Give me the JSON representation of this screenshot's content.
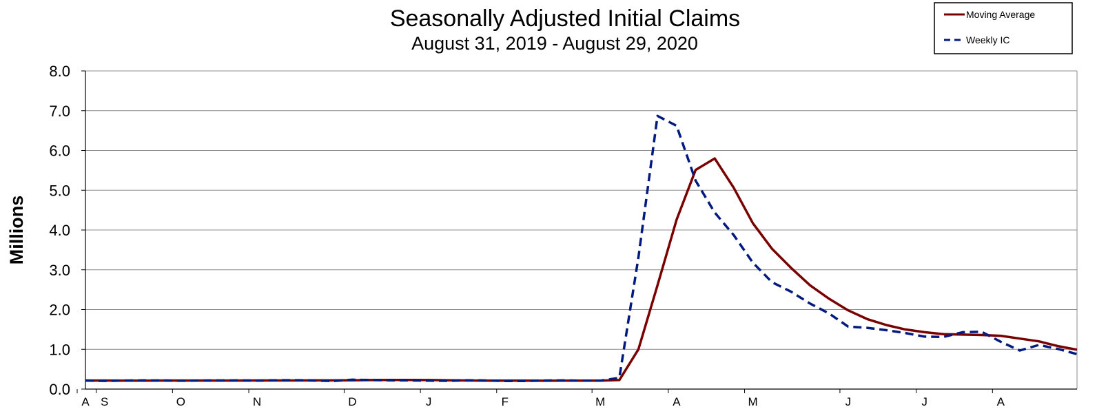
{
  "chart_data": {
    "type": "line",
    "title": "Seasonally Adjusted Initial Claims",
    "subtitle": "August 31, 2019 - August 29, 2020",
    "xlabel": "",
    "ylabel": "Millions",
    "ylim": [
      0,
      8
    ],
    "yticks": [
      "0.0",
      "1.0",
      "2.0",
      "3.0",
      "4.0",
      "5.0",
      "6.0",
      "7.0",
      "8.0"
    ],
    "xticks": [
      {
        "label": "A",
        "date": "2019-08-31"
      },
      {
        "label": "S",
        "date": "2019-09-07"
      },
      {
        "label": "O",
        "date": "2019-10-05"
      },
      {
        "label": "N",
        "date": "2019-11-02"
      },
      {
        "label": "D",
        "date": "2019-12-07"
      },
      {
        "label": "J",
        "date": "2020-01-04"
      },
      {
        "label": "F",
        "date": "2020-02-01"
      },
      {
        "label": "M",
        "date": "2020-03-07"
      },
      {
        "label": "A",
        "date": "2020-04-04"
      },
      {
        "label": "M",
        "date": "2020-05-02"
      },
      {
        "label": "J",
        "date": "2020-06-06"
      },
      {
        "label": "J",
        "date": "2020-07-04"
      },
      {
        "label": "A",
        "date": "2020-08-01"
      }
    ],
    "grid": true,
    "legend_position": "top-right",
    "x": [
      "2019-08-31",
      "2019-09-07",
      "2019-09-14",
      "2019-09-21",
      "2019-09-28",
      "2019-10-05",
      "2019-10-12",
      "2019-10-19",
      "2019-10-26",
      "2019-11-02",
      "2019-11-09",
      "2019-11-16",
      "2019-11-23",
      "2019-11-30",
      "2019-12-07",
      "2019-12-14",
      "2019-12-21",
      "2019-12-28",
      "2020-01-04",
      "2020-01-11",
      "2020-01-18",
      "2020-01-25",
      "2020-02-01",
      "2020-02-08",
      "2020-02-15",
      "2020-02-22",
      "2020-02-29",
      "2020-03-07",
      "2020-03-14",
      "2020-03-21",
      "2020-03-28",
      "2020-04-04",
      "2020-04-11",
      "2020-04-18",
      "2020-04-25",
      "2020-05-02",
      "2020-05-09",
      "2020-05-16",
      "2020-05-23",
      "2020-05-30",
      "2020-06-06",
      "2020-06-13",
      "2020-06-20",
      "2020-06-27",
      "2020-07-04",
      "2020-07-11",
      "2020-07-18",
      "2020-07-25",
      "2020-08-01",
      "2020-08-08",
      "2020-08-15",
      "2020-08-22",
      "2020-08-29"
    ],
    "series": [
      {
        "name": "Moving Average",
        "color": "#7a0000",
        "style": "solid",
        "values": [
          0.215,
          0.214,
          0.213,
          0.213,
          0.214,
          0.215,
          0.215,
          0.214,
          0.215,
          0.216,
          0.216,
          0.217,
          0.219,
          0.219,
          0.222,
          0.226,
          0.228,
          0.229,
          0.226,
          0.221,
          0.216,
          0.213,
          0.212,
          0.211,
          0.21,
          0.211,
          0.212,
          0.213,
          0.226,
          1.0,
          2.61,
          4.26,
          5.51,
          5.8,
          5.06,
          4.17,
          3.53,
          3.05,
          2.61,
          2.27,
          1.98,
          1.76,
          1.61,
          1.5,
          1.43,
          1.38,
          1.37,
          1.36,
          1.34,
          1.27,
          1.2,
          1.08,
          0.99
        ]
      },
      {
        "name": "Weekly IC",
        "color": "#001a80",
        "style": "dashed",
        "values": [
          0.215,
          0.206,
          0.213,
          0.219,
          0.216,
          0.209,
          0.215,
          0.216,
          0.219,
          0.212,
          0.222,
          0.223,
          0.215,
          0.204,
          0.235,
          0.229,
          0.218,
          0.218,
          0.211,
          0.208,
          0.22,
          0.216,
          0.204,
          0.205,
          0.215,
          0.218,
          0.211,
          0.211,
          0.282,
          3.31,
          6.87,
          6.62,
          5.24,
          4.44,
          3.87,
          3.18,
          2.69,
          2.45,
          2.15,
          1.9,
          1.57,
          1.54,
          1.48,
          1.41,
          1.32,
          1.31,
          1.43,
          1.44,
          1.19,
          0.97,
          1.11,
          1.01,
          0.88
        ]
      }
    ]
  }
}
